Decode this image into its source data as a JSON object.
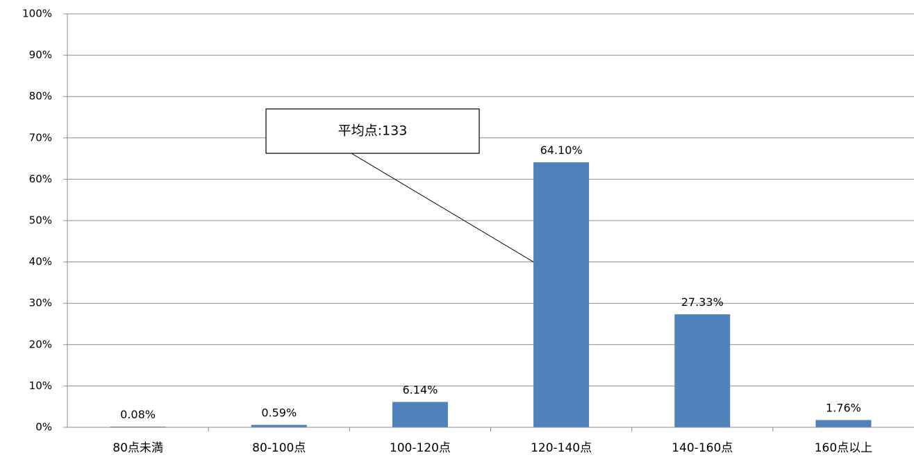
{
  "chart_data": {
    "type": "bar",
    "title": "",
    "xlabel": "",
    "ylabel": "",
    "categories": [
      "80点未満",
      "80-100点",
      "100-120点",
      "120-140点",
      "140-160点",
      "160点以上"
    ],
    "values": [
      0.08,
      0.59,
      6.14,
      64.1,
      27.33,
      1.76
    ],
    "data_labels": [
      "0.08%",
      "0.59%",
      "6.14%",
      "64.10%",
      "27.33%",
      "1.76%"
    ],
    "y_ticks": [
      "0%",
      "10%",
      "20%",
      "30%",
      "40%",
      "50%",
      "60%",
      "70%",
      "80%",
      "90%",
      "100%"
    ],
    "ylim": [
      0,
      100
    ],
    "grid": true,
    "legend": "none",
    "bar_color": "#4F81BD",
    "annotation": {
      "text": "平均点:133",
      "points_to": {
        "category": "120-140点",
        "value": 40
      }
    }
  }
}
